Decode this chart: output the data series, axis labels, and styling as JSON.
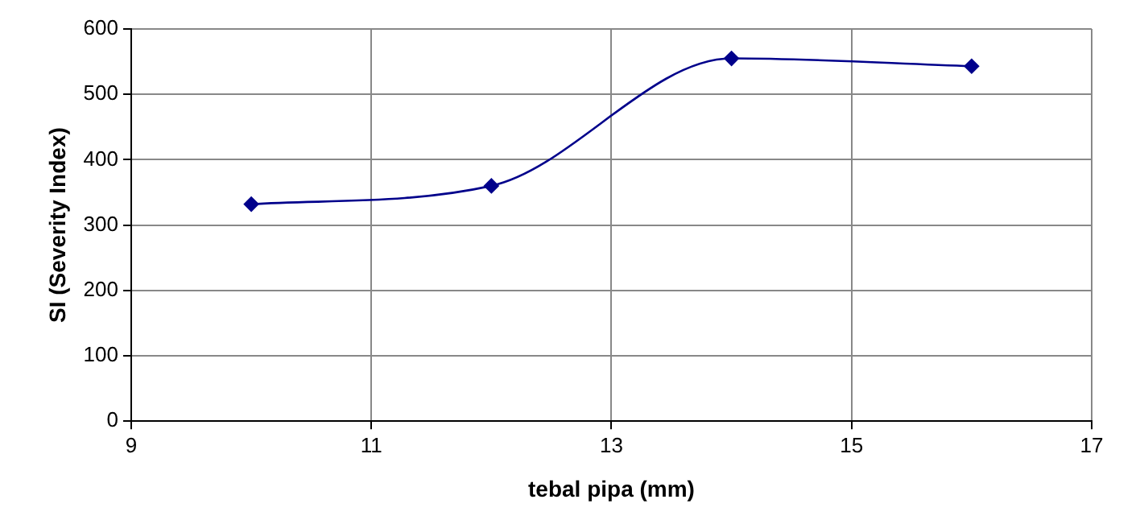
{
  "chart_data": {
    "type": "line",
    "xlabel": "tebal pipa (mm)",
    "ylabel": "SI (Severity Index)",
    "x": [
      10,
      12,
      14,
      16
    ],
    "series": [
      {
        "color": "#00008b",
        "values": [
          332,
          360,
          555,
          543
        ]
      }
    ],
    "xlim": [
      9,
      17
    ],
    "xticks": [
      9,
      11,
      13,
      15,
      17
    ],
    "ylim": [
      0,
      600
    ],
    "yticks": [
      0,
      100,
      200,
      300,
      400,
      500,
      600
    ],
    "grid": true,
    "legend": false,
    "marker": "diamond",
    "line_style": "solid"
  }
}
